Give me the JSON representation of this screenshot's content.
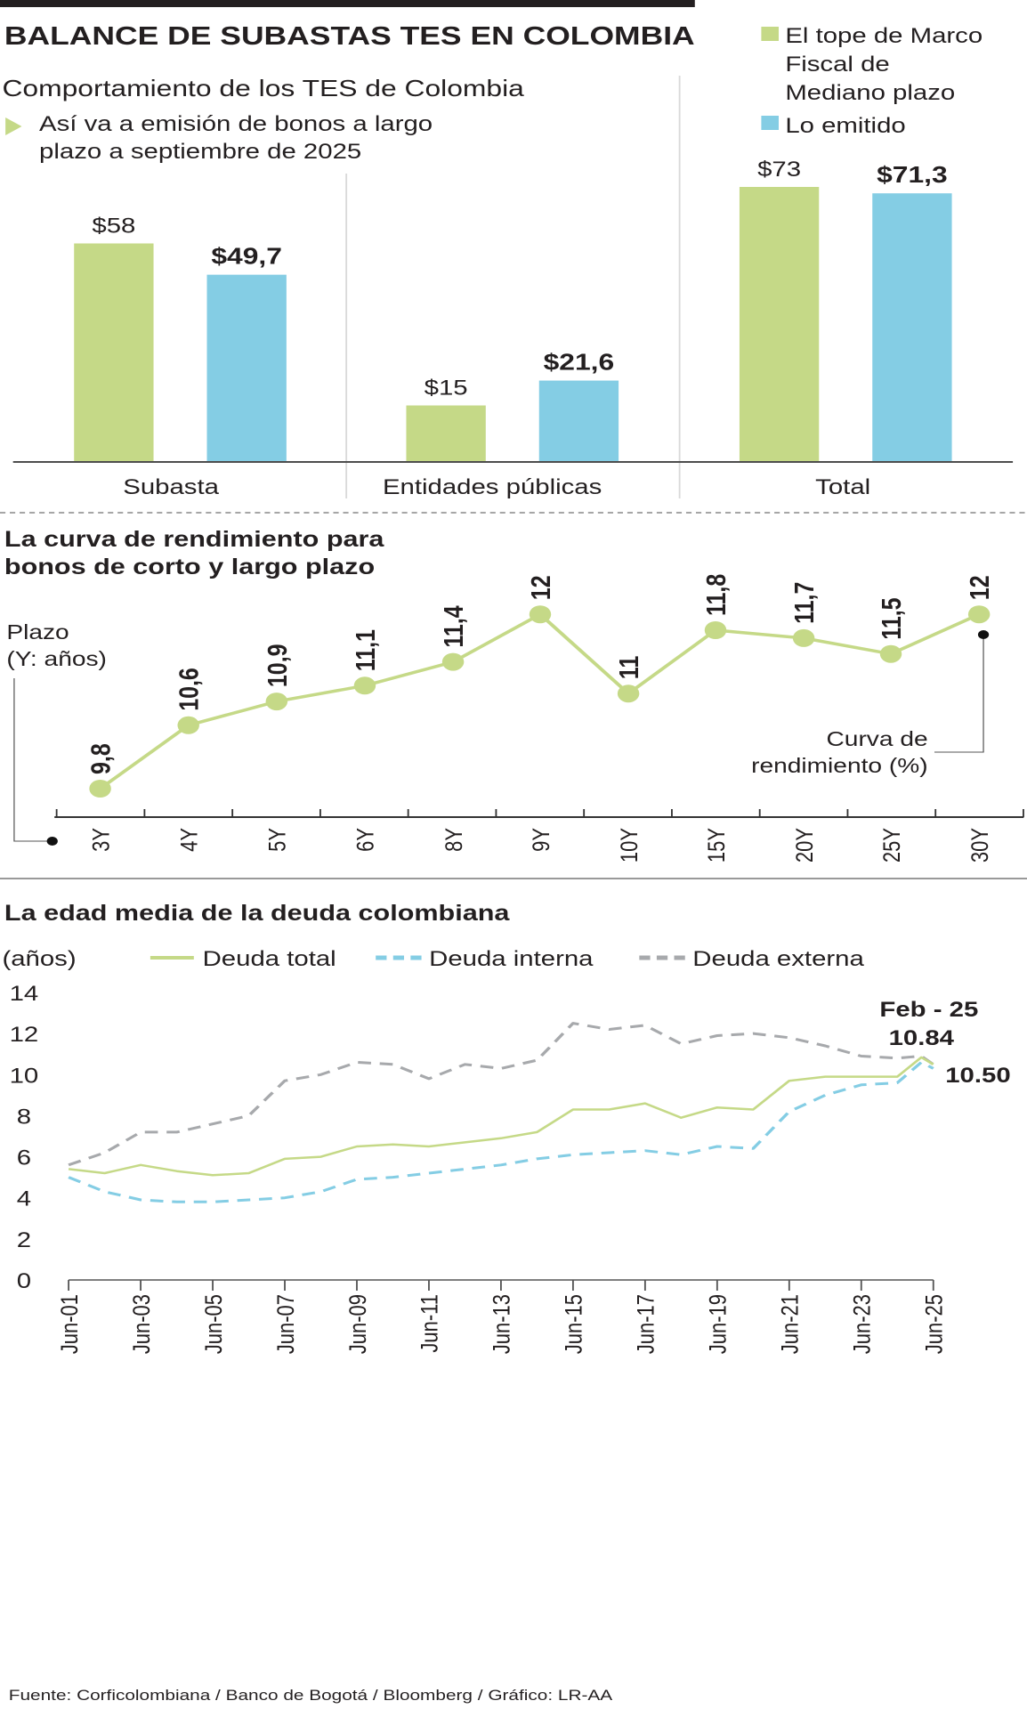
{
  "title": "BALANCE DE SUBASTAS TES EN COLOMBIA",
  "source": "Fuente: Corficolombiana / Banco de Bogotá / Bloomberg / Gráfico: LR-AA",
  "colors": {
    "green": "#c5d987",
    "blue": "#84cde4",
    "gray": "#a7a9ac",
    "text": "#231f20"
  },
  "chart_data": [
    {
      "type": "bar",
      "title": "Comportamiento de los TES de Colombia",
      "subtitle_line1": "Así va a emisión de bonos a largo",
      "subtitle_line2": "plazo a septiembre de 2025",
      "categories": [
        "Subasta",
        "Entidades públicas",
        "Total"
      ],
      "legend": {
        "line1": "El tope de Marco",
        "line2": "Fiscal de",
        "line3": "Mediano plazo",
        "blue": "Lo emitido"
      },
      "series": [
        {
          "name": "El tope de Marco Fiscal de Mediano plazo",
          "color": "#c5d987",
          "values": [
            58,
            15,
            73
          ],
          "labels": [
            "$58",
            "$15",
            "$73"
          ]
        },
        {
          "name": "Lo emitido",
          "color": "#84cde4",
          "values": [
            49.7,
            21.6,
            71.3
          ],
          "labels": [
            "$49,7",
            "$21,6",
            "$71,3"
          ]
        }
      ]
    },
    {
      "type": "line",
      "title_line1": "La curva de rendimiento para",
      "title_line2": "bonos de corto y largo plazo",
      "xlabel_line1": "Plazo",
      "xlabel_line2": "(Y: años)",
      "ylabel_line1": "Curva de",
      "ylabel_line2": "rendimiento (%)",
      "categories": [
        "3Y",
        "4Y",
        "5Y",
        "6Y",
        "8Y",
        "9Y",
        "10Y",
        "15Y",
        "20Y",
        "25Y",
        "30Y"
      ],
      "values": [
        9.8,
        10.6,
        10.9,
        11.1,
        11.4,
        12,
        11,
        11.8,
        11.7,
        11.5,
        12
      ],
      "labels": [
        "9,8",
        "10,6",
        "10,9",
        "11,1",
        "11,4",
        "12",
        "11",
        "11,8",
        "11,7",
        "11,5",
        "12"
      ],
      "color": "#c5d987"
    },
    {
      "type": "line",
      "title": "La edad media de la deuda colombiana",
      "ylabel": "(años)",
      "ylim": [
        0,
        14
      ],
      "yticks": [
        "0",
        "2",
        "4",
        "6",
        "8",
        "10",
        "12",
        "14"
      ],
      "xticks": [
        "Jun-01",
        "Jun-03",
        "Jun-05",
        "Jun-07",
        "Jun-09",
        "Jun-11",
        "Jun-13",
        "Jun-15",
        "Jun-17",
        "Jun-19",
        "Jun-21",
        "Jun-23",
        "Jun-25"
      ],
      "x": [
        "2001-06",
        "2002-06",
        "2003-06",
        "2004-06",
        "2005-06",
        "2006-06",
        "2007-06",
        "2008-06",
        "2009-06",
        "2010-06",
        "2011-06",
        "2012-06",
        "2013-06",
        "2014-06",
        "2015-06",
        "2016-06",
        "2017-06",
        "2018-06",
        "2019-06",
        "2020-06",
        "2021-06",
        "2022-06",
        "2023-06",
        "2024-06",
        "2025-02",
        "2025-06"
      ],
      "series": [
        {
          "name": "Deuda total",
          "color": "#c5d987",
          "style": "solid",
          "values": [
            5.4,
            5.2,
            5.6,
            5.3,
            5.1,
            5.2,
            5.9,
            6.0,
            6.5,
            6.6,
            6.5,
            6.7,
            6.9,
            7.2,
            8.3,
            8.3,
            8.6,
            7.9,
            8.4,
            8.3,
            9.7,
            9.9,
            9.9,
            9.9,
            10.84,
            10.5
          ]
        },
        {
          "name": "Deuda interna",
          "color": "#84cde4",
          "style": "dashed",
          "values": [
            5.0,
            4.3,
            3.9,
            3.8,
            3.8,
            3.9,
            4.0,
            4.3,
            4.9,
            5.0,
            5.2,
            5.4,
            5.6,
            5.9,
            6.1,
            6.2,
            6.3,
            6.1,
            6.5,
            6.4,
            8.2,
            9.0,
            9.5,
            9.6,
            10.6,
            10.3
          ]
        },
        {
          "name": "Deuda externa",
          "color": "#a7a9ac",
          "style": "dashed",
          "values": [
            5.6,
            6.2,
            7.2,
            7.2,
            7.6,
            8.0,
            9.7,
            10.0,
            10.6,
            10.5,
            9.8,
            10.5,
            10.3,
            10.7,
            12.5,
            12.2,
            12.4,
            11.5,
            11.9,
            12.0,
            11.8,
            11.4,
            10.9,
            10.8,
            10.9,
            10.5
          ]
        }
      ],
      "annotations": {
        "date": "Feb - 25",
        "peak": "10.84",
        "last": "10.50"
      }
    }
  ]
}
